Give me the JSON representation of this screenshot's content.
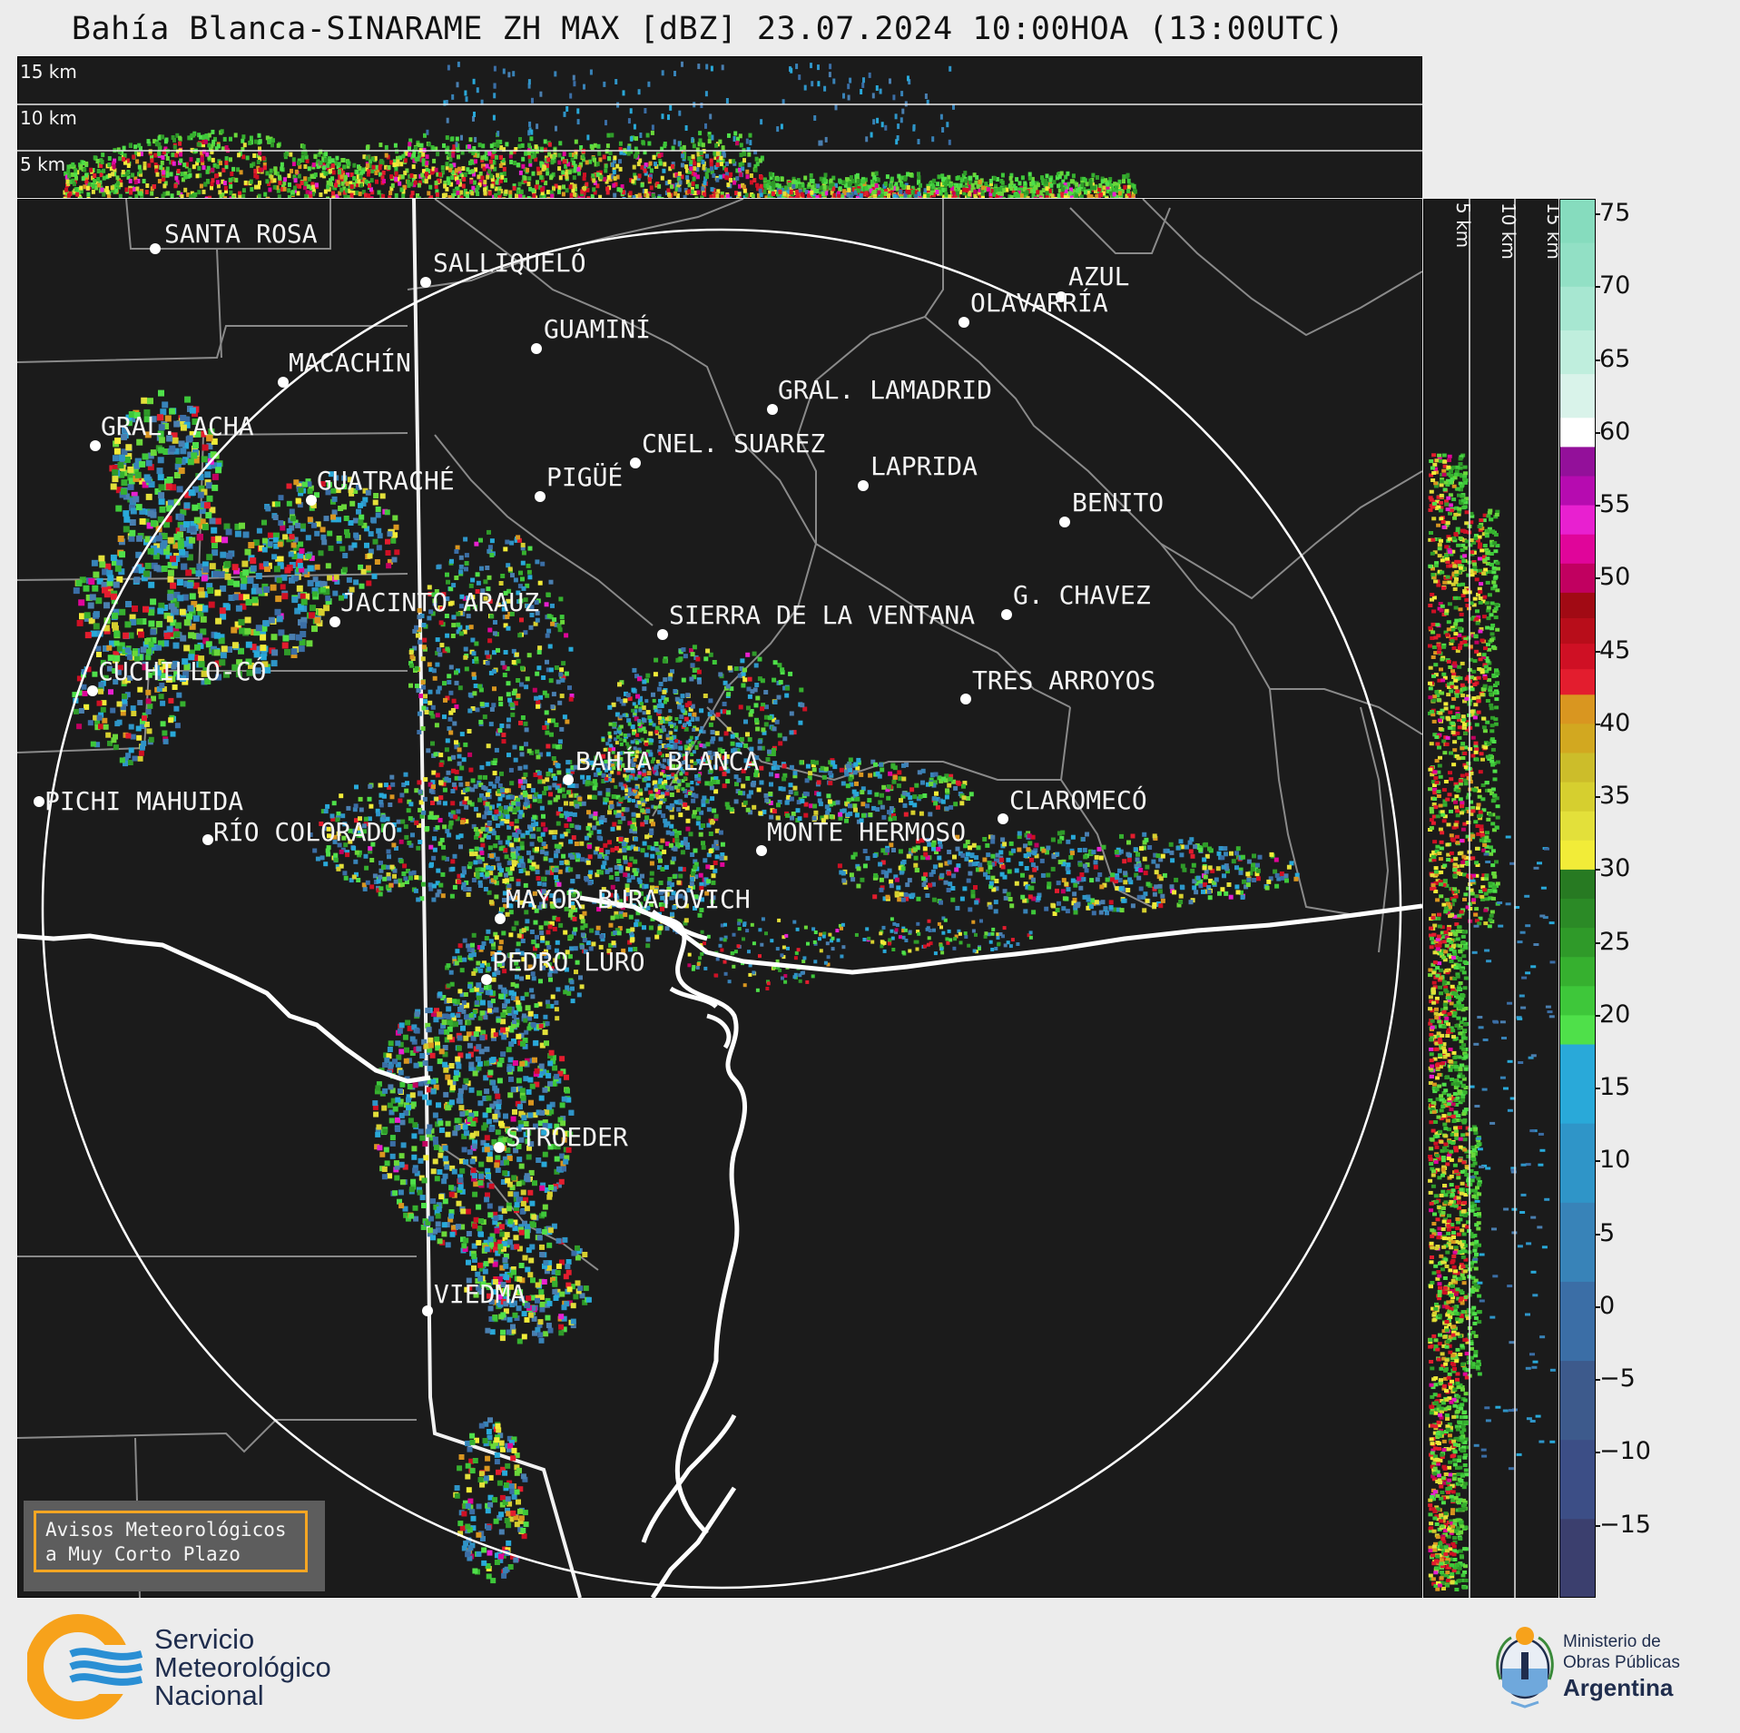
{
  "title": "Bahía Blanca-SINARAME ZH MAX [dBZ] 23.07.2024 10:00HOA (13:00UTC)",
  "top_panel": {
    "altitude_labels": [
      "15 km",
      "10 km",
      "5 km"
    ]
  },
  "side_panel": {
    "altitude_labels": [
      "5 km",
      "10 km",
      "15 km"
    ]
  },
  "cities": [
    {
      "name": "SANTA ROSA"
    },
    {
      "name": "SALLIQUELÓ"
    },
    {
      "name": "AZUL"
    },
    {
      "name": "OLAVARRÍA"
    },
    {
      "name": "GUAMINÍ"
    },
    {
      "name": "MACACHÍN"
    },
    {
      "name": "GRAL. LAMADRID"
    },
    {
      "name": "GRAL. ACHA"
    },
    {
      "name": "CNEL. SUAREZ"
    },
    {
      "name": "LAPRIDA"
    },
    {
      "name": "PIGÜÉ"
    },
    {
      "name": "GUATRACHÉ"
    },
    {
      "name": "BENITO"
    },
    {
      "name": "G. CHAVEZ"
    },
    {
      "name": "JACINTO ARAUZ"
    },
    {
      "name": "SIERRA DE LA VENTANA"
    },
    {
      "name": "CUCHILLO-CÓ"
    },
    {
      "name": "TRES ARROYOS"
    },
    {
      "name": "BAHÍA BLANCA"
    },
    {
      "name": "PICHI MAHUIDA"
    },
    {
      "name": "CLAROMECÓ"
    },
    {
      "name": "RÍO COLORADO"
    },
    {
      "name": "MONTE HERMOSO"
    },
    {
      "name": "MAYOR BURATOVICH"
    },
    {
      "name": "PEDRO LURO"
    },
    {
      "name": "STROEDER"
    },
    {
      "name": "VIEDMA"
    }
  ],
  "colorbar": {
    "unit": "dBZ",
    "ticks": [
      "75",
      "70",
      "65",
      "60",
      "55",
      "50",
      "45",
      "40",
      "35",
      "30",
      "25",
      "20",
      "15",
      "10",
      "5",
      "0",
      "−5",
      "−10",
      "−15"
    ],
    "range": [
      -20,
      76
    ],
    "bands": [
      {
        "from": -20,
        "to": 18,
        "color": "#3d5a8c",
        "label": "blue"
      },
      {
        "from": 18,
        "to": 30,
        "color": "#3fbf3f",
        "label": "green"
      },
      {
        "from": 30,
        "to": 42,
        "color": "#e8d12a",
        "label": "yellow"
      },
      {
        "from": 42,
        "to": 49,
        "color": "#d90f2a",
        "label": "red"
      },
      {
        "from": 49,
        "to": 59,
        "color": "#d10fbf",
        "label": "magenta"
      },
      {
        "from": 59,
        "to": 61,
        "color": "#ffffff",
        "label": "white"
      },
      {
        "from": 61,
        "to": 76,
        "color": "#86dcbe",
        "label": "mint"
      }
    ]
  },
  "avisos_box": {
    "line1": "Avisos Meteorológicos",
    "line2": "a Muy Corto Plazo"
  },
  "smn_logo": {
    "line1": "Servicio",
    "line2": "Meteorológico",
    "line3": "Nacional"
  },
  "ministry_logo": {
    "line1": "Ministerio de",
    "line2": "Obras Públicas",
    "line3": "Argentina"
  }
}
